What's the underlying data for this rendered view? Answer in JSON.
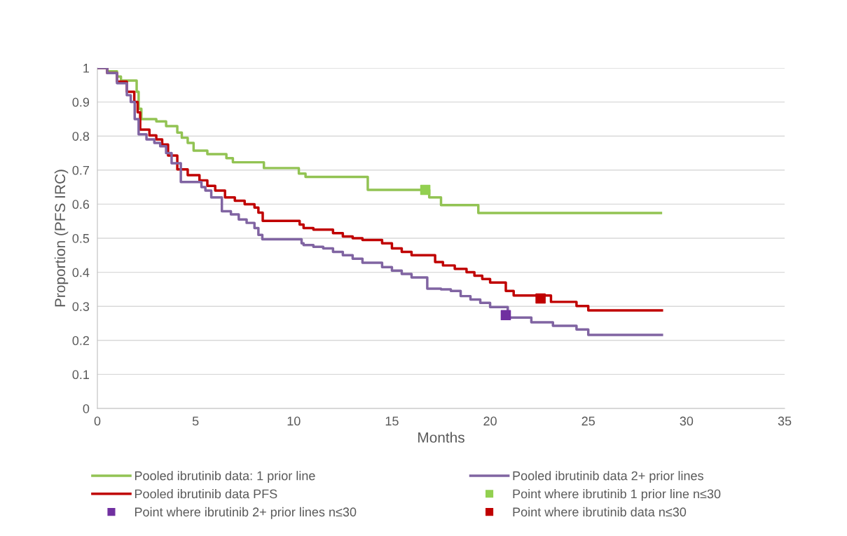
{
  "chart_data": {
    "type": "step",
    "xlabel": "Months",
    "ylabel": "Proportion (PFS IRC)",
    "xlim": [
      0,
      35
    ],
    "xticks": [
      0,
      5,
      10,
      15,
      20,
      25,
      30,
      35
    ],
    "ylim": [
      0,
      1
    ],
    "yticks": [
      0,
      0.1,
      0.2,
      0.3,
      0.4,
      0.5,
      0.6,
      0.7,
      0.8,
      0.9,
      1
    ],
    "grid": "y",
    "legend": "bottom",
    "line_style": "solid",
    "marker": "none",
    "series": [
      {
        "name": "Pooled ibrutinib data: 1 prior line",
        "color": "#92c353",
        "x": [
          0,
          0.5,
          1.0,
          1.2,
          2.0,
          2.1,
          2.24,
          3.0,
          3.5,
          4.07,
          4.3,
          4.6,
          4.9,
          5.6,
          6.57,
          6.9,
          8.48,
          10.26,
          10.6,
          13.77,
          16.9,
          17.5,
          19.4,
          28.7
        ],
        "values": [
          1,
          0.99,
          0.975,
          0.963,
          0.93,
          0.88,
          0.85,
          0.843,
          0.829,
          0.81,
          0.795,
          0.78,
          0.757,
          0.747,
          0.735,
          0.723,
          0.706,
          0.69,
          0.68,
          0.642,
          0.62,
          0.597,
          0.574,
          0.574
        ]
      },
      {
        "name": "Pooled ibrutinib data PFS",
        "color": "#c00000",
        "x": [
          0,
          0.5,
          1.0,
          1.5,
          1.88,
          2.05,
          2.18,
          2.65,
          3.0,
          3.3,
          3.6,
          4.07,
          4.6,
          5.2,
          5.6,
          6.0,
          6.5,
          7.0,
          7.5,
          8.0,
          8.2,
          8.42,
          10.3,
          10.5,
          11.0,
          12.0,
          12.5,
          13.0,
          13.5,
          14.5,
          15.0,
          15.5,
          16.0,
          17.2,
          17.6,
          18.2,
          18.8,
          19.2,
          19.6,
          20.0,
          20.8,
          21.2,
          23.1,
          24.4,
          25.0,
          28.75
        ],
        "values": [
          1,
          0.985,
          0.96,
          0.93,
          0.9,
          0.87,
          0.819,
          0.802,
          0.79,
          0.775,
          0.743,
          0.702,
          0.685,
          0.67,
          0.654,
          0.64,
          0.62,
          0.61,
          0.6,
          0.59,
          0.575,
          0.551,
          0.54,
          0.53,
          0.525,
          0.515,
          0.505,
          0.5,
          0.495,
          0.485,
          0.47,
          0.46,
          0.45,
          0.43,
          0.42,
          0.41,
          0.4,
          0.39,
          0.38,
          0.37,
          0.345,
          0.332,
          0.313,
          0.301,
          0.288,
          0.288
        ]
      },
      {
        "name": "Point where ibrutinib 2+ prior lines n≤30",
        "type": "scatter",
        "marker": "square",
        "color": "#7030a0",
        "x": [
          20.8
        ],
        "values": [
          0.274
        ]
      },
      {
        "name": "Pooled ibrutinib data 2+ prior lines",
        "color": "#8064a2",
        "x": [
          0,
          0.5,
          1.0,
          1.5,
          1.7,
          1.9,
          2.1,
          2.5,
          2.9,
          3.2,
          3.5,
          3.78,
          4.25,
          5.3,
          5.5,
          5.8,
          6.34,
          6.8,
          7.2,
          7.6,
          8.0,
          8.2,
          8.4,
          10.4,
          10.5,
          11.0,
          11.5,
          12.0,
          12.5,
          13.0,
          13.5,
          14.5,
          15.0,
          15.5,
          16.0,
          16.8,
          17.5,
          18.0,
          18.5,
          19.0,
          19.5,
          20.0,
          20.9,
          22.1,
          23.2,
          24.4,
          25.0,
          28.75
        ],
        "values": [
          1,
          0.985,
          0.955,
          0.92,
          0.9,
          0.85,
          0.805,
          0.79,
          0.78,
          0.77,
          0.75,
          0.72,
          0.665,
          0.65,
          0.64,
          0.62,
          0.579,
          0.57,
          0.555,
          0.545,
          0.53,
          0.51,
          0.497,
          0.485,
          0.48,
          0.475,
          0.47,
          0.46,
          0.45,
          0.44,
          0.428,
          0.415,
          0.405,
          0.395,
          0.385,
          0.352,
          0.35,
          0.345,
          0.33,
          0.32,
          0.31,
          0.298,
          0.267,
          0.253,
          0.243,
          0.232,
          0.216,
          0.216
        ]
      },
      {
        "name": "Point where ibrutinib 1 prior line n≤30",
        "type": "scatter",
        "marker": "square",
        "color": "#92d050",
        "x": [
          16.7
        ],
        "values": [
          0.642
        ]
      },
      {
        "name": "Point where ibrutinib data n≤30",
        "type": "scatter",
        "marker": "square",
        "color": "#c00000",
        "x": [
          22.57
        ],
        "values": [
          0.323
        ]
      }
    ]
  }
}
